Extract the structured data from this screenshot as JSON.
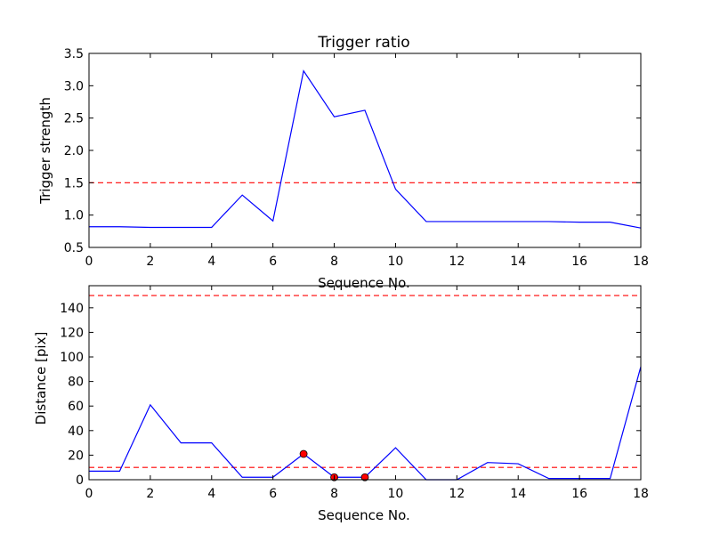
{
  "chart_data": [
    {
      "type": "line",
      "title": "Trigger ratio",
      "xlabel": "Sequence No.",
      "ylabel": "Trigger strength",
      "xlim": [
        0,
        18
      ],
      "ylim": [
        0.5,
        3.5
      ],
      "xticks": [
        0,
        2,
        4,
        6,
        8,
        10,
        12,
        14,
        16,
        18
      ],
      "xtick_labels": [
        "0",
        "2",
        "4",
        "6",
        "8",
        "10",
        "12",
        "14",
        "16",
        "18"
      ],
      "yticks": [
        0.5,
        1.0,
        1.5,
        2.0,
        2.5,
        3.0,
        3.5
      ],
      "ytick_labels": [
        "0.5",
        "1.0",
        "1.5",
        "2.0",
        "2.5",
        "3.0",
        "3.5"
      ],
      "grid": false,
      "series": [
        {
          "color": "#0000ff",
          "x": [
            0,
            1,
            2,
            3,
            4,
            5,
            6,
            7,
            8,
            9,
            10,
            11,
            12,
            13,
            14,
            15,
            16,
            17,
            18
          ],
          "y": [
            0.82,
            0.82,
            0.81,
            0.81,
            0.81,
            1.31,
            0.91,
            3.23,
            2.52,
            2.62,
            1.4,
            0.9,
            0.9,
            0.9,
            0.9,
            0.9,
            0.89,
            0.89,
            0.8
          ]
        }
      ],
      "thresholds": [
        {
          "y": 1.5,
          "color": "#ff0000",
          "style": "dashed"
        }
      ]
    },
    {
      "type": "line",
      "title": "",
      "xlabel": "Sequence No.",
      "ylabel": "Distance [pix]",
      "xlim": [
        0,
        18
      ],
      "ylim": [
        0,
        158
      ],
      "xticks": [
        0,
        2,
        4,
        6,
        8,
        10,
        12,
        14,
        16,
        18
      ],
      "xtick_labels": [
        "0",
        "2",
        "4",
        "6",
        "8",
        "10",
        "12",
        "14",
        "16",
        "18"
      ],
      "yticks": [
        0,
        20,
        40,
        60,
        80,
        100,
        120,
        140
      ],
      "ytick_labels": [
        "0",
        "20",
        "40",
        "60",
        "80",
        "100",
        "120",
        "140"
      ],
      "grid": false,
      "series": [
        {
          "color": "#0000ff",
          "x": [
            0,
            1,
            2,
            3,
            4,
            5,
            6,
            7,
            8,
            9,
            10,
            11,
            12,
            13,
            14,
            15,
            16,
            17,
            18
          ],
          "y": [
            7,
            7,
            61,
            30,
            30,
            2,
            2,
            21,
            2,
            2,
            26,
            0,
            0,
            14,
            13,
            1,
            1,
            1,
            92
          ]
        }
      ],
      "markers": {
        "color": "#ff0000",
        "points": [
          {
            "x": 7,
            "y": 21
          },
          {
            "x": 8,
            "y": 2
          },
          {
            "x": 9,
            "y": 2
          }
        ]
      },
      "thresholds": [
        {
          "y": 150,
          "color": "#ff0000",
          "style": "dashed"
        },
        {
          "y": 10,
          "color": "#ff0000",
          "style": "dashed"
        }
      ]
    }
  ]
}
